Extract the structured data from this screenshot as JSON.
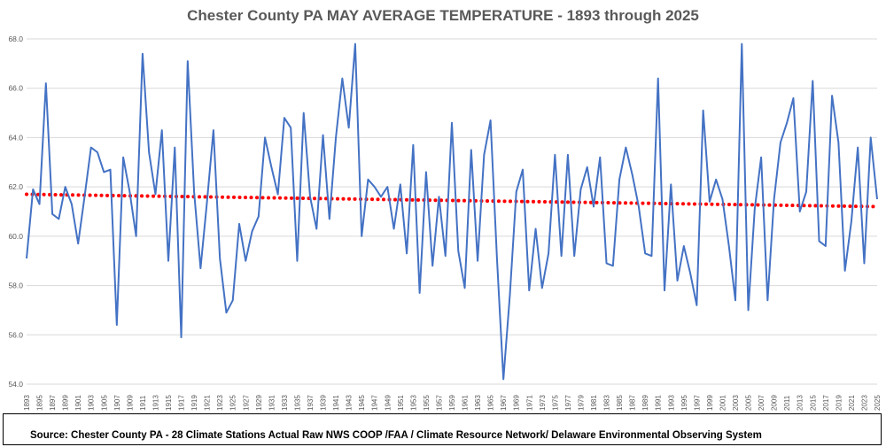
{
  "chart_data": {
    "type": "line",
    "title": "Chester County PA MAY AVERAGE TEMPERATURE - 1893 through 2025",
    "xlabel": "",
    "ylabel": "",
    "ylim": [
      54.0,
      68.0
    ],
    "yticks": [
      "54.0",
      "56.0",
      "58.0",
      "60.0",
      "62.0",
      "64.0",
      "66.0",
      "68.0"
    ],
    "x_start": 1893,
    "x_end": 2025,
    "x_tick_step": 2,
    "grid": true,
    "legend": "none",
    "series": [
      {
        "style": "solid",
        "color": "#4472C4",
        "x": [
          1893,
          1894,
          1895,
          1896,
          1897,
          1898,
          1899,
          1900,
          1901,
          1902,
          1903,
          1904,
          1905,
          1906,
          1907,
          1908,
          1909,
          1910,
          1911,
          1912,
          1913,
          1914,
          1915,
          1916,
          1917,
          1918,
          1919,
          1920,
          1921,
          1922,
          1923,
          1924,
          1925,
          1926,
          1927,
          1928,
          1929,
          1930,
          1931,
          1932,
          1933,
          1934,
          1935,
          1936,
          1937,
          1938,
          1939,
          1940,
          1941,
          1942,
          1943,
          1944,
          1945,
          1946,
          1947,
          1948,
          1949,
          1950,
          1951,
          1952,
          1953,
          1954,
          1955,
          1956,
          1957,
          1958,
          1959,
          1960,
          1961,
          1962,
          1963,
          1964,
          1965,
          1966,
          1967,
          1968,
          1969,
          1970,
          1971,
          1972,
          1973,
          1974,
          1975,
          1976,
          1977,
          1978,
          1979,
          1980,
          1981,
          1982,
          1983,
          1984,
          1985,
          1986,
          1987,
          1988,
          1989,
          1990,
          1991,
          1992,
          1993,
          1994,
          1995,
          1996,
          1997,
          1998,
          1999,
          2000,
          2001,
          2002,
          2003,
          2004,
          2005,
          2006,
          2007,
          2008,
          2009,
          2010,
          2011,
          2012,
          2013,
          2014,
          2015,
          2016,
          2017,
          2018,
          2019,
          2020,
          2021,
          2022,
          2023,
          2024,
          2025
        ],
        "values": [
          59.1,
          61.9,
          61.3,
          66.2,
          60.9,
          60.7,
          62.0,
          61.3,
          59.7,
          61.6,
          63.6,
          63.4,
          62.6,
          62.7,
          56.4,
          63.2,
          61.8,
          60.0,
          67.4,
          63.4,
          61.7,
          64.3,
          59.0,
          63.6,
          55.9,
          67.1,
          61.8,
          58.7,
          61.4,
          64.3,
          59.1,
          56.9,
          57.4,
          60.5,
          59.0,
          60.2,
          60.8,
          64.0,
          62.8,
          61.7,
          64.8,
          64.4,
          59.0,
          65.0,
          61.6,
          60.3,
          64.1,
          60.7,
          64.0,
          66.4,
          64.4,
          67.8,
          60.0,
          62.3,
          62.0,
          61.6,
          62.0,
          60.3,
          62.1,
          59.3,
          63.7,
          57.7,
          62.6,
          58.8,
          61.6,
          59.2,
          64.6,
          59.4,
          57.9,
          63.5,
          59.0,
          63.3,
          64.7,
          59.1,
          54.2,
          57.6,
          61.8,
          62.7,
          57.8,
          60.3,
          57.9,
          59.3,
          63.3,
          59.2,
          63.3,
          59.2,
          61.9,
          62.8,
          61.2,
          63.2,
          58.9,
          58.8,
          62.3,
          63.6,
          62.5,
          61.2,
          59.3,
          59.2,
          66.4,
          57.8,
          62.1,
          58.2,
          59.6,
          58.5,
          57.2,
          65.1,
          61.4,
          62.3,
          61.5,
          59.6,
          57.4,
          67.8,
          57.0,
          61.1,
          63.2,
          57.4,
          61.5,
          63.8,
          64.6,
          65.6,
          61.0,
          61.8,
          66.3,
          59.8,
          59.6,
          65.7,
          63.8,
          58.6,
          60.6,
          63.6,
          58.9,
          64.0,
          61.5
        ]
      },
      {
        "style": "dotted",
        "color": "#FF0000",
        "trend_start": 61.7,
        "trend_end": 61.2
      }
    ]
  },
  "source": {
    "text": "Source: Chester County PA - 28 Climate Stations Actual Raw NWS COOP /FAA / Climate Resource Network/ Delaware Environmental Observing System"
  }
}
